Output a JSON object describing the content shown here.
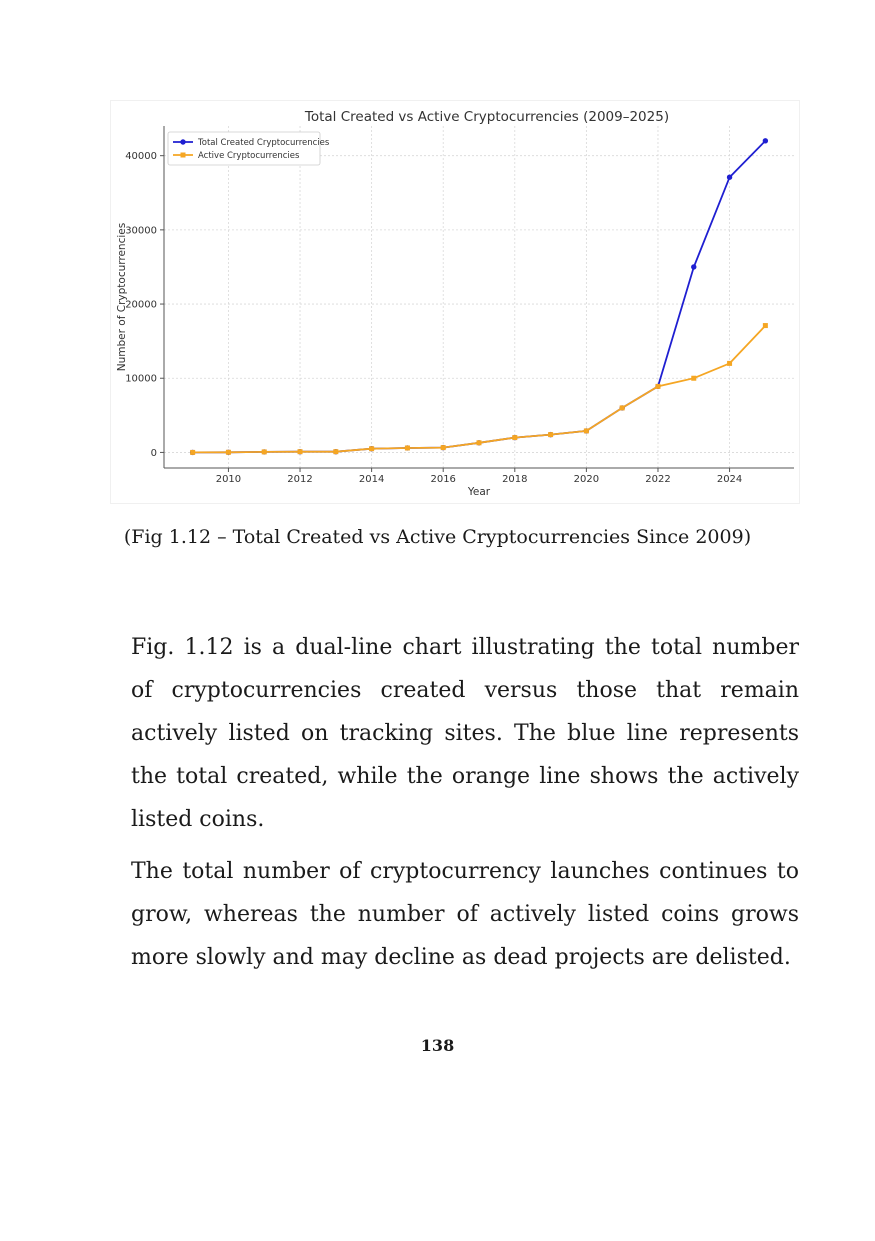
{
  "chart_data": {
    "type": "line",
    "title": "Total Created vs Active Cryptocurrencies (2009–2025)",
    "xlabel": "Year",
    "ylabel": "Number of Cryptocurrencies",
    "x": [
      2009,
      2010,
      2011,
      2012,
      2013,
      2014,
      2015,
      2016,
      2017,
      2018,
      2019,
      2020,
      2021,
      2022,
      2023,
      2024,
      2025
    ],
    "xlim": [
      2008.2,
      2025.8
    ],
    "ylim": [
      -2100,
      44000
    ],
    "xticks": [
      2010,
      2012,
      2014,
      2016,
      2018,
      2020,
      2022,
      2024
    ],
    "yticks": [
      0,
      10000,
      20000,
      30000,
      40000
    ],
    "grid": true,
    "legend_position": "top-left",
    "series": [
      {
        "name": "Total Created Cryptocurrencies",
        "color": "#1f1fd1",
        "marker": "circle",
        "values": [
          1,
          20,
          70,
          100,
          100,
          500,
          600,
          650,
          1300,
          2000,
          2400,
          2900,
          6000,
          8900,
          25000,
          37100,
          42000
        ]
      },
      {
        "name": "Active Cryptocurrencies",
        "color": "#f5a623",
        "marker": "square",
        "values": [
          1,
          20,
          70,
          100,
          100,
          500,
          600,
          650,
          1300,
          2000,
          2400,
          2900,
          6000,
          8900,
          10000,
          12000,
          17100
        ]
      }
    ]
  },
  "caption": "(Fig 1.12 – Total Created vs Active Cryptocurrencies Since 2009)",
  "paragraphs": [
    "Fig. 1.12 is a dual-line chart illustrating the total number of cryptocurrencies created versus those that remain actively listed on tracking sites. The blue line represents the total created, while the orange line shows the actively listed coins.",
    "The total number of cryptocurrency launches continues to grow, whereas the number of actively listed coins grows more slowly and may decline as dead projects are delisted."
  ],
  "page_number": "138"
}
